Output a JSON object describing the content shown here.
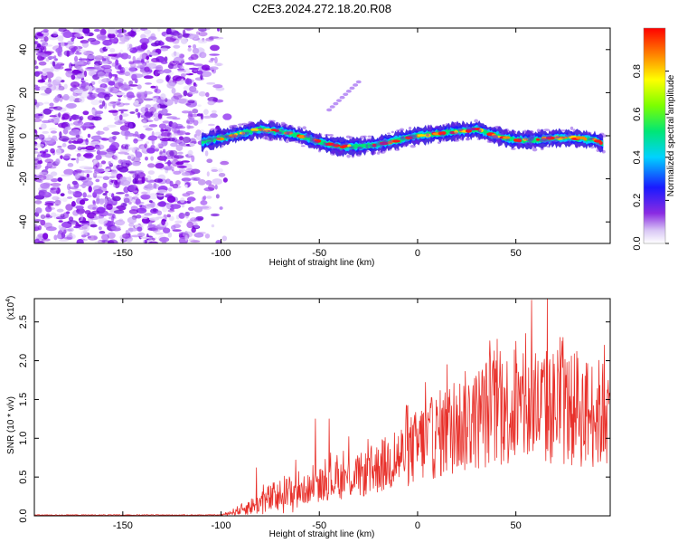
{
  "figure": {
    "title": "C2E3.2024.272.18.20.R08"
  },
  "chart_data": [
    {
      "type": "heatmap",
      "name": "spectrogram",
      "xlabel": "Height of straight line (km)",
      "ylabel": "Frequency (Hz)",
      "xlim": [
        -195,
        98
      ],
      "ylim": [
        -50,
        50
      ],
      "xticks": [
        -150,
        -100,
        -50,
        0,
        50
      ],
      "yticks": [
        -40,
        -20,
        0,
        20,
        40
      ],
      "colorbar": {
        "label": "Normalized spectral amplitude",
        "range": [
          0,
          1
        ],
        "ticks": [
          0.0,
          0.2,
          0.4,
          0.6,
          0.8
        ],
        "tick_labels": [
          "0.0",
          "0.2",
          "0.4",
          "0.6",
          "0.8"
        ]
      },
      "noise_region_km": [
        -195,
        -100
      ],
      "signal_track": {
        "x": [
          -110,
          -100,
          -90,
          -80,
          -70,
          -60,
          -50,
          -40,
          -30,
          -20,
          -10,
          0,
          10,
          20,
          30,
          40,
          50,
          60,
          70,
          80,
          90,
          95
        ],
        "freq": [
          -3,
          -1,
          1,
          3,
          2,
          0,
          -3,
          -5,
          -5,
          -4,
          -2,
          0,
          1,
          2,
          3,
          0,
          -2,
          -2,
          -1,
          -1,
          -2,
          -4
        ],
        "peak_amplitude": 1.0
      },
      "secondary_feature": {
        "x": [
          -45,
          -30
        ],
        "freq": [
          12,
          25
        ]
      }
    },
    {
      "type": "line",
      "name": "snr",
      "xlabel": "Height of straight line (km)",
      "ylabel": "SNR (10 * v/v)",
      "scale_label": "(x10",
      "scale_exponent": "4",
      "scale_suffix": ")",
      "xlim": [
        -195,
        98
      ],
      "ylim": [
        0,
        2.8
      ],
      "xticks": [
        -150,
        -100,
        -50,
        0,
        50
      ],
      "yticks": [
        0.0,
        0.5,
        1.0,
        1.5,
        2.0,
        2.5
      ],
      "ytick_labels": [
        "0.0",
        "0.5",
        "1.0",
        "1.5",
        "2.0",
        "2.5"
      ],
      "color": "#e8302a",
      "trend": {
        "x": [
          -195,
          -100,
          -95,
          -85,
          -75,
          -65,
          -55,
          -45,
          -35,
          -25,
          -15,
          -5,
          5,
          15,
          25,
          35,
          45,
          55,
          65,
          75,
          85,
          98
        ],
        "y": [
          0.01,
          0.01,
          0.04,
          0.12,
          0.22,
          0.28,
          0.35,
          0.45,
          0.48,
          0.55,
          0.68,
          0.82,
          0.97,
          1.1,
          1.22,
          1.33,
          1.38,
          1.35,
          1.4,
          1.38,
          1.33,
          1.3
        ]
      },
      "spikes": [
        {
          "x": -82,
          "y": 0.62
        },
        {
          "x": -62,
          "y": 0.72
        },
        {
          "x": -52,
          "y": 1.25
        },
        {
          "x": -45,
          "y": 1.25
        },
        {
          "x": -35,
          "y": 1.02
        },
        {
          "x": -20,
          "y": 0.85
        },
        {
          "x": 2,
          "y": 1.35
        },
        {
          "x": 4,
          "y": 1.72
        },
        {
          "x": 15,
          "y": 1.95
        },
        {
          "x": 30,
          "y": 1.75
        },
        {
          "x": 37,
          "y": 2.05
        },
        {
          "x": 42,
          "y": 2.12
        },
        {
          "x": 50,
          "y": 2.25
        },
        {
          "x": 55,
          "y": 2.35
        },
        {
          "x": 58,
          "y": 2.78
        },
        {
          "x": 66,
          "y": 2.82
        },
        {
          "x": 74,
          "y": 2.3
        },
        {
          "x": 81,
          "y": 2.12
        },
        {
          "x": 95,
          "y": 2.2
        }
      ]
    }
  ]
}
